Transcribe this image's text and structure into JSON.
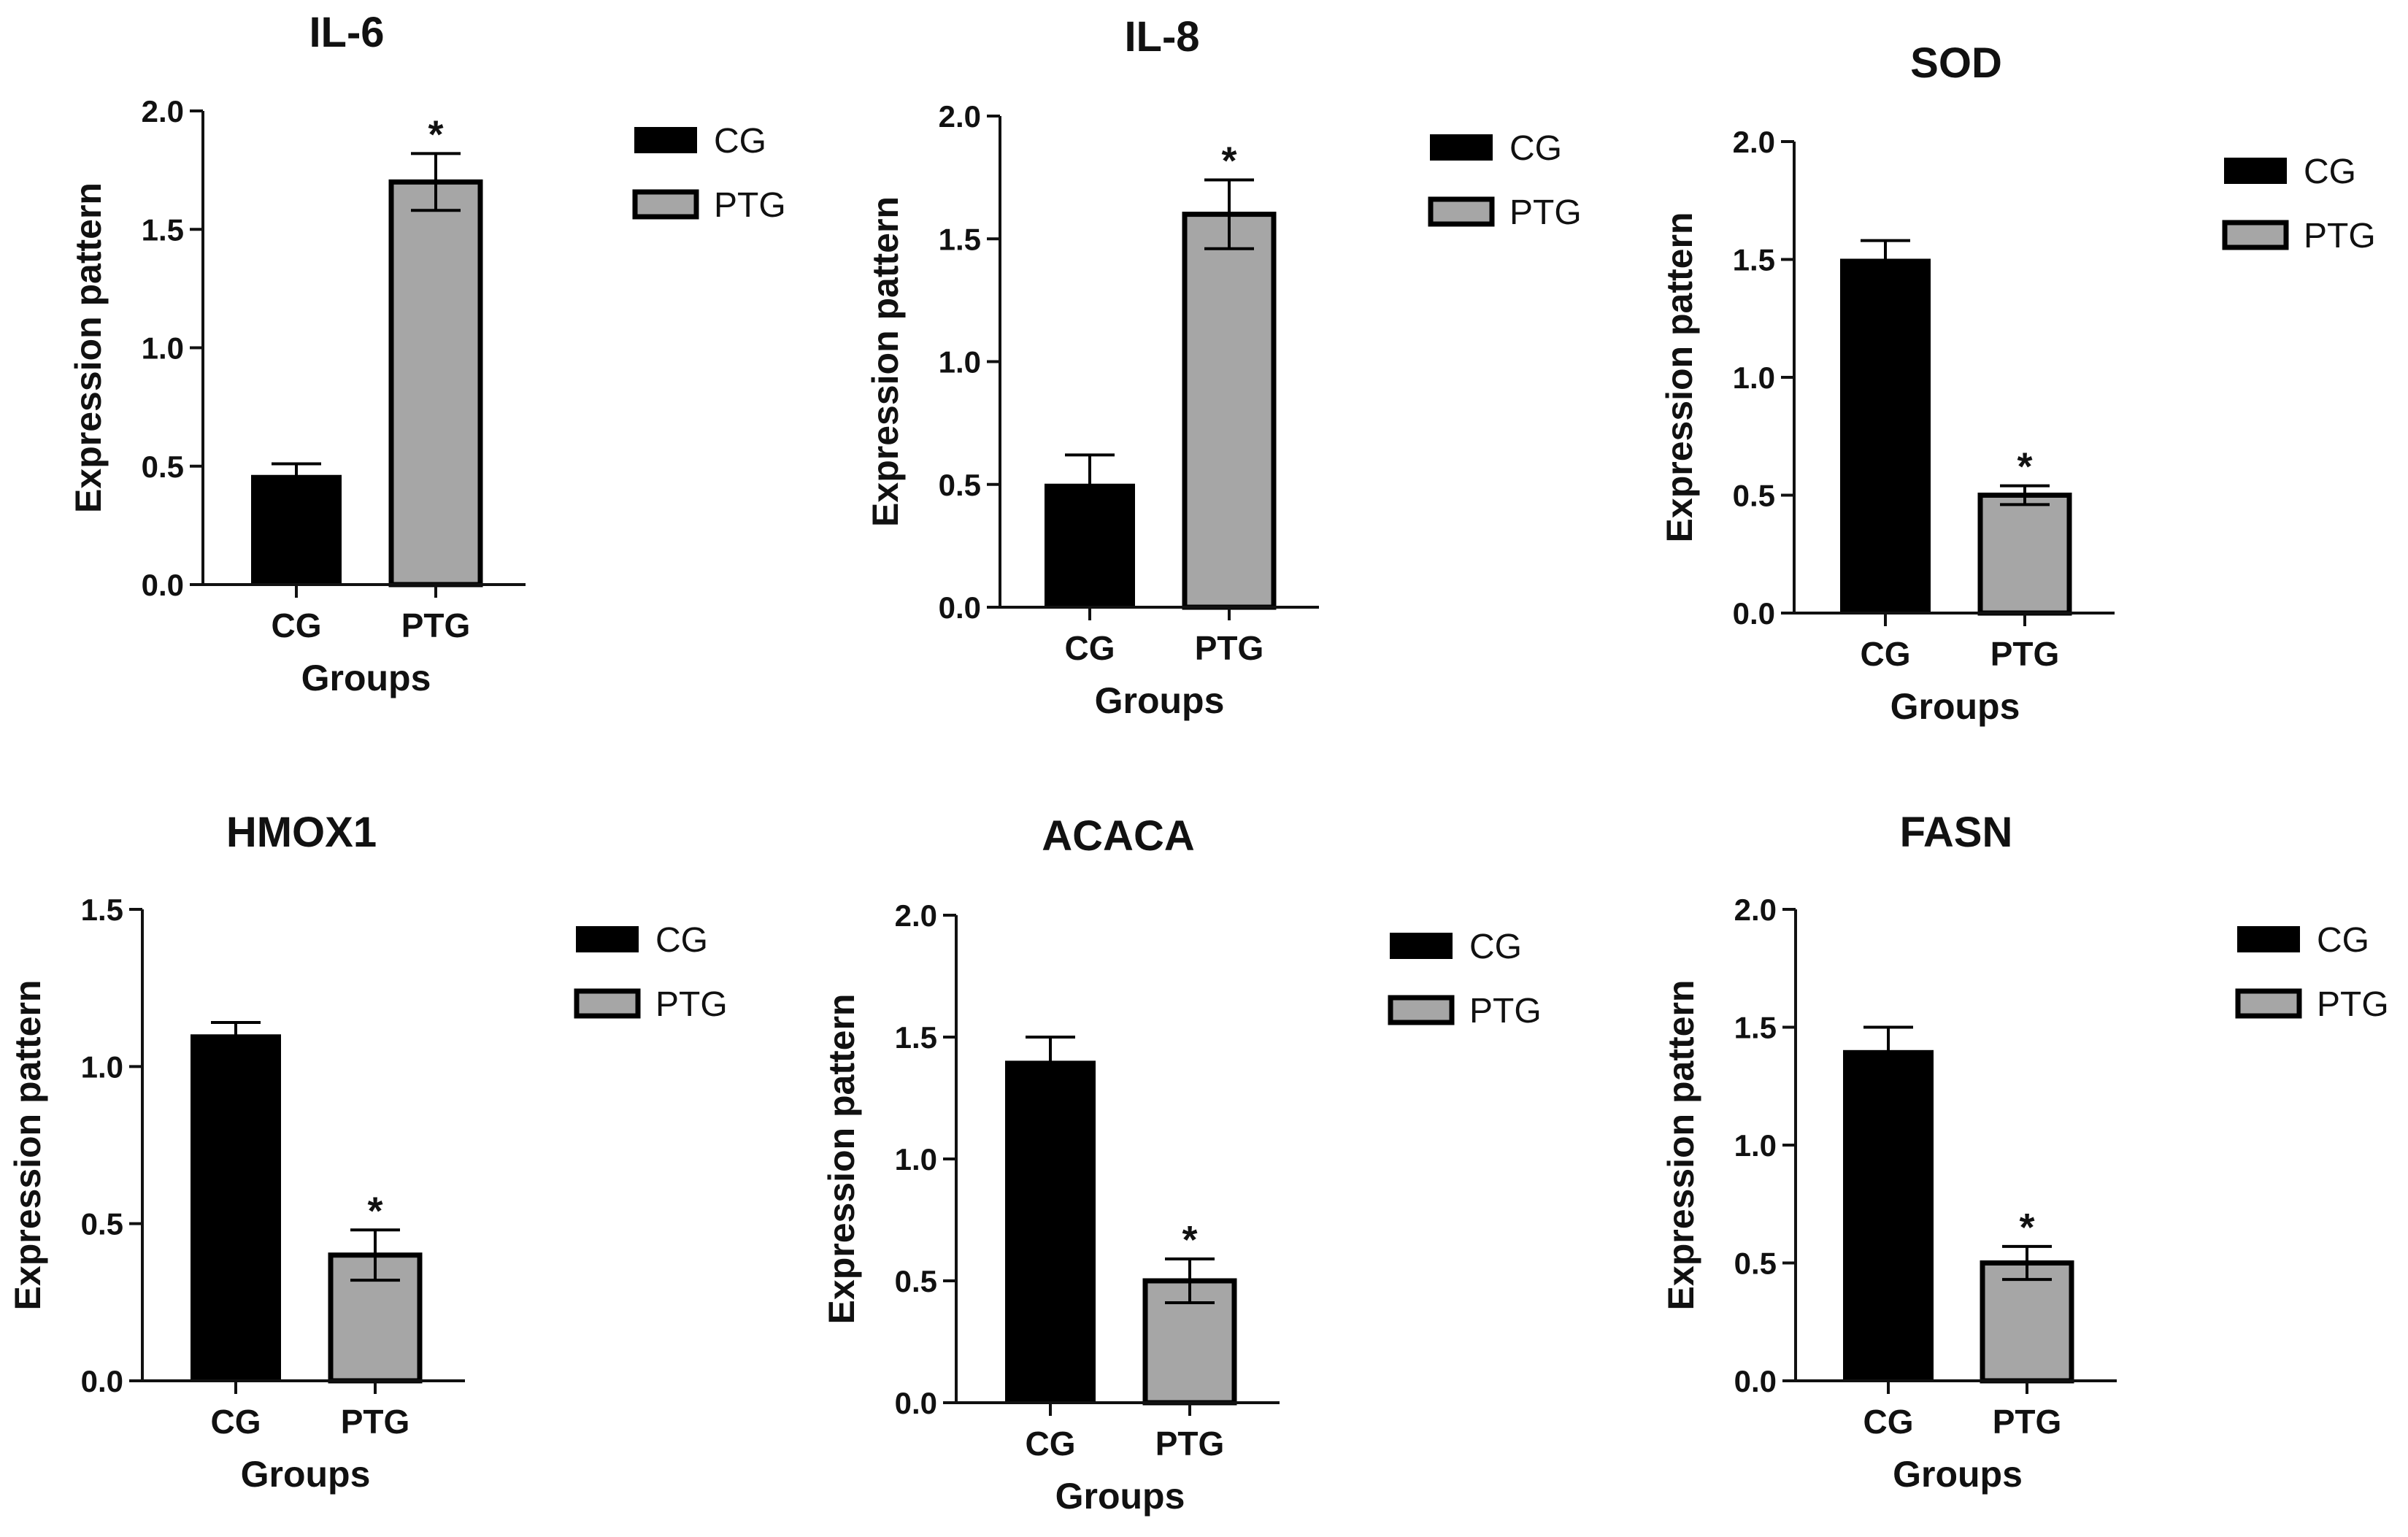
{
  "chart_data": [
    {
      "type": "bar",
      "title": "IL-6",
      "categories": [
        "CG",
        "PTG"
      ],
      "values": [
        0.46,
        1.7
      ],
      "errors": [
        0.05,
        0.12
      ],
      "significance": [
        "",
        "*"
      ],
      "xlabel": "Groups",
      "ylabel": "Expression pattern",
      "ylim": [
        0,
        2.0
      ],
      "yticks": [
        "0.0",
        "0.5",
        "1.0",
        "1.5",
        "2.0"
      ],
      "legend": [
        "CG",
        "PTG"
      ],
      "legend_position": "top-right"
    },
    {
      "type": "bar",
      "title": "IL-8",
      "categories": [
        "CG",
        "PTG"
      ],
      "values": [
        0.5,
        1.6
      ],
      "errors": [
        0.12,
        0.14
      ],
      "significance": [
        "",
        "*"
      ],
      "xlabel": "Groups",
      "ylabel": "Expression pattern",
      "ylim": [
        0,
        2.0
      ],
      "yticks": [
        "0.0",
        "0.5",
        "1.0",
        "1.5",
        "2.0"
      ],
      "legend": [
        "CG",
        "PTG"
      ],
      "legend_position": "top-right"
    },
    {
      "type": "bar",
      "title": "SOD",
      "categories": [
        "CG",
        "PTG"
      ],
      "values": [
        1.5,
        0.5
      ],
      "errors": [
        0.08,
        0.04
      ],
      "significance": [
        "",
        "*"
      ],
      "xlabel": "Groups",
      "ylabel": "Expression pattern",
      "ylim": [
        0,
        2.0
      ],
      "yticks": [
        "0.0",
        "0.5",
        "1.0",
        "1.5",
        "2.0"
      ],
      "legend": [
        "CG",
        "PTG"
      ],
      "legend_position": "top-right"
    },
    {
      "type": "bar",
      "title": "HMOX1",
      "categories": [
        "CG",
        "PTG"
      ],
      "values": [
        1.1,
        0.4
      ],
      "errors": [
        0.04,
        0.08
      ],
      "significance": [
        "",
        "*"
      ],
      "xlabel": "Groups",
      "ylabel": "Expression pattern",
      "ylim": [
        0,
        1.5
      ],
      "yticks": [
        "0.0",
        "0.5",
        "1.0",
        "1.5"
      ],
      "legend": [
        "CG",
        "PTG"
      ],
      "legend_position": "top-right"
    },
    {
      "type": "bar",
      "title": "ACACA",
      "categories": [
        "CG",
        "PTG"
      ],
      "values": [
        1.4,
        0.5
      ],
      "errors": [
        0.1,
        0.09
      ],
      "significance": [
        "",
        "*"
      ],
      "xlabel": "Groups",
      "ylabel": "Expression pattern",
      "ylim": [
        0,
        2.0
      ],
      "yticks": [
        "0.0",
        "0.5",
        "1.0",
        "1.5",
        "2.0"
      ],
      "legend": [
        "CG",
        "PTG"
      ],
      "legend_position": "top-right"
    },
    {
      "type": "bar",
      "title": "FASN",
      "categories": [
        "CG",
        "PTG"
      ],
      "values": [
        1.4,
        0.5
      ],
      "errors": [
        0.1,
        0.07
      ],
      "significance": [
        "",
        "*"
      ],
      "xlabel": "Groups",
      "ylabel": "Expression pattern",
      "ylim": [
        0,
        2.0
      ],
      "yticks": [
        "0.0",
        "0.5",
        "1.0",
        "1.5",
        "2.0"
      ],
      "legend": [
        "CG",
        "PTG"
      ],
      "legend_position": "top-right"
    }
  ],
  "colors": {
    "CG": "#000000",
    "PTG": "#a6a6a6",
    "axis": "#111111"
  }
}
